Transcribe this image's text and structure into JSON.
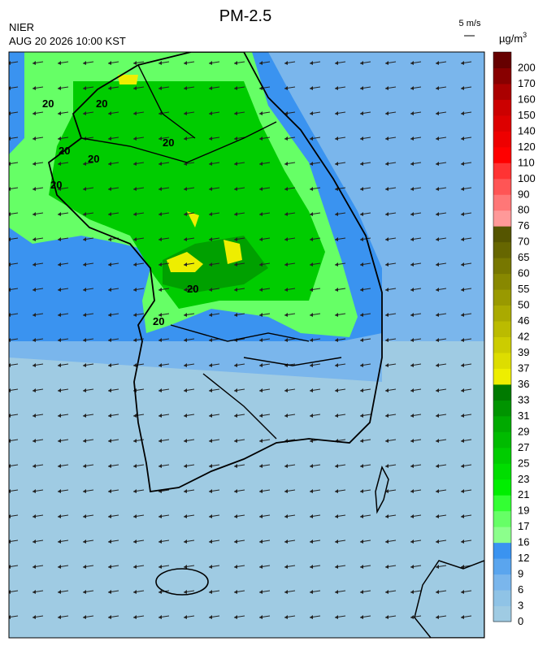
{
  "title": "PM-2.5",
  "source": "NIER",
  "timestamp": "AUG 20 2026 10:00 KST",
  "wind_scale": "5 m/s",
  "unit": "µg/m",
  "unit_superscript": "3",
  "contour_labels": [
    "20",
    "20",
    "20",
    "20",
    "20",
    "20",
    "20",
    "20"
  ],
  "colorbar": {
    "ticks": [
      0,
      3,
      6,
      9,
      12,
      16,
      17,
      19,
      21,
      23,
      25,
      27,
      29,
      31,
      33,
      36,
      37,
      39,
      42,
      46,
      50,
      55,
      60,
      65,
      70,
      76,
      80,
      90,
      100,
      110,
      120,
      140,
      150,
      160,
      170,
      200
    ],
    "colors": [
      "#9fcbe3",
      "#8fc3e6",
      "#7ab6ec",
      "#5aa5ee",
      "#3a93f0",
      "#8cff8c",
      "#66ff66",
      "#33ff33",
      "#00ee00",
      "#00dd00",
      "#00cc00",
      "#00bb00",
      "#00aa00",
      "#009400",
      "#007a00",
      "#eeee00",
      "#dddd00",
      "#cccc00",
      "#bbbb00",
      "#aaaa00",
      "#999900",
      "#888800",
      "#777700",
      "#666600",
      "#555500",
      "#ff9999",
      "#ff7777",
      "#ff5555",
      "#ff3333",
      "#ff0000",
      "#ee0000",
      "#dd0000",
      "#cc0000",
      "#aa0000",
      "#880000",
      "#660000"
    ]
  }
}
